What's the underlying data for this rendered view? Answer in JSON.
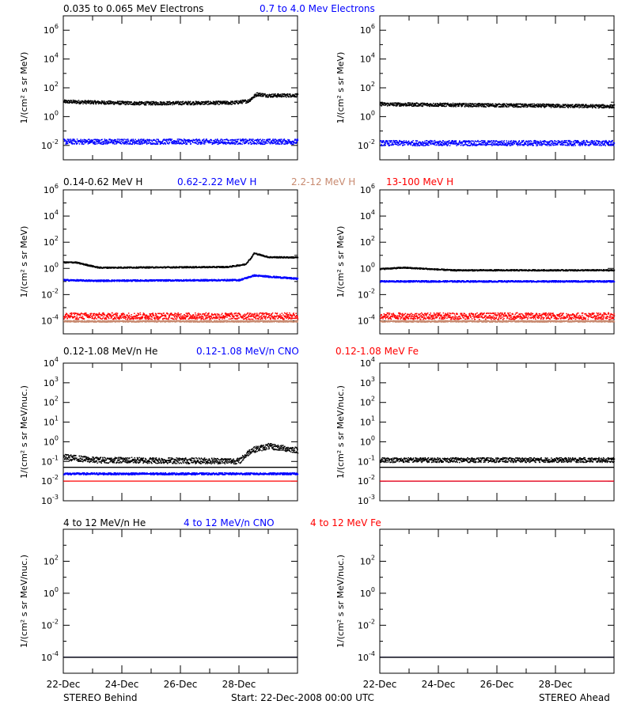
{
  "colors": {
    "black": "#000000",
    "blue": "#0000ff",
    "tan": "#c88a70",
    "red": "#ff0000"
  },
  "footer": {
    "left": "STEREO Behind",
    "center": "Start: 22-Dec-2008 00:00 UTC",
    "right": "STEREO Ahead"
  },
  "chart_data": {
    "type": "scatter",
    "log_scale_y": true,
    "x_range_days": [
      "22-Dec-2008",
      "30-Dec-2008"
    ],
    "x_ticks": [
      "22-Dec",
      "24-Dec",
      "26-Dec",
      "28-Dec"
    ],
    "rows": [
      {
        "id": "electrons",
        "ylabel": "1/(cm² s sr MeV)",
        "ylim_exp": [
          -3,
          7
        ],
        "ytick_exps": [
          -2,
          0,
          2,
          4,
          6
        ],
        "legend": [
          {
            "text": "0.035 to 0.065 MeV Electrons",
            "color": "black"
          },
          {
            "text": "0.7 to 4.0 Mev Electrons",
            "color": "blue"
          }
        ],
        "panels": {
          "behind": [
            {
              "color": "black",
              "points": [
                [
                  0,
                  1.08
                ],
                [
                  2.6,
                  0.96
                ],
                [
                  5.8,
                  1.0
                ],
                [
                  6.3,
                  1.12
                ],
                [
                  6.6,
                  1.6
                ],
                [
                  7.0,
                  1.5
                ],
                [
                  8.0,
                  1.52
                ]
              ],
              "scatter": 0.12
            },
            {
              "color": "blue",
              "points": [
                [
                  0,
                  -1.7
                ],
                [
                  8.0,
                  -1.7
                ]
              ],
              "scatter": 0.18
            }
          ],
          "ahead": [
            {
              "color": "black",
              "points": [
                [
                  0,
                  0.9
                ],
                [
                  8.0,
                  0.75
                ]
              ],
              "scatter": 0.12
            },
            {
              "color": "blue",
              "points": [
                [
                  0,
                  -1.8
                ],
                [
                  8.0,
                  -1.8
                ]
              ],
              "scatter": 0.18
            }
          ]
        }
      },
      {
        "id": "protons",
        "ylabel": "1/(cm² s sr MeV)",
        "ylim_exp": [
          -5,
          6
        ],
        "ytick_exps": [
          -4,
          -2,
          0,
          2,
          4,
          6
        ],
        "legend": [
          {
            "text": "0.14-0.62 MeV H",
            "color": "black"
          },
          {
            "text": "0.62-2.22 MeV H",
            "color": "blue"
          },
          {
            "text": "2.2-12 MeV H",
            "color": "tan"
          },
          {
            "text": "13-100 MeV H",
            "color": "red"
          }
        ],
        "panels": {
          "behind": [
            {
              "color": "black",
              "points": [
                [
                  0,
                  0.5
                ],
                [
                  0.4,
                  0.5
                ],
                [
                  1.2,
                  0.1
                ],
                [
                  5.6,
                  0.15
                ],
                [
                  6.2,
                  0.35
                ],
                [
                  6.4,
                  0.85
                ],
                [
                  6.5,
                  1.2
                ],
                [
                  7.0,
                  0.9
                ],
                [
                  8.0,
                  0.88
                ]
              ],
              "scatter": 0.05
            },
            {
              "color": "blue",
              "points": [
                [
                  0,
                  -0.85
                ],
                [
                  1.0,
                  -0.9
                ],
                [
                  6.0,
                  -0.85
                ],
                [
                  6.5,
                  -0.5
                ],
                [
                  8.0,
                  -0.75
                ]
              ],
              "scatter": 0.06
            },
            {
              "color": "tan",
              "points": [
                [
                  0,
                  -4.0
                ],
                [
                  8.0,
                  -4.0
                ]
              ],
              "scatter": 0.06
            },
            {
              "color": "red",
              "points": [
                [
                  0,
                  -3.6
                ],
                [
                  8.0,
                  -3.6
                ]
              ],
              "scatter": 0.25
            }
          ],
          "ahead": [
            {
              "color": "black",
              "points": [
                [
                  0,
                  0.0
                ],
                [
                  0.8,
                  0.1
                ],
                [
                  2.5,
                  -0.1
                ],
                [
                  8.0,
                  -0.1
                ]
              ],
              "scatter": 0.05
            },
            {
              "color": "blue",
              "points": [
                [
                  0,
                  -0.95
                ],
                [
                  8.0,
                  -0.95
                ]
              ],
              "scatter": 0.06
            },
            {
              "color": "tan",
              "points": [
                [
                  0,
                  -4.0
                ],
                [
                  8.0,
                  -4.0
                ]
              ],
              "scatter": 0.06
            },
            {
              "color": "red",
              "points": [
                [
                  0,
                  -3.6
                ],
                [
                  8.0,
                  -3.6
                ]
              ],
              "scatter": 0.25
            }
          ]
        }
      },
      {
        "id": "low_heavy_ions",
        "ylabel": "1/(cm² s sr MeV/nuc.)",
        "ylim_exp": [
          -3,
          4
        ],
        "ytick_exps": [
          -3,
          -2,
          -1,
          0,
          1,
          2,
          3,
          4
        ],
        "legend": [
          {
            "text": "0.12-1.08 MeV/n He",
            "color": "black"
          },
          {
            "text": "0.12-1.08 MeV/n CNO",
            "color": "blue"
          },
          {
            "text": "0.12-1.08 MeV Fe",
            "color": "red"
          }
        ],
        "panels": {
          "behind": [
            {
              "color": "black",
              "points": [
                [
                  0,
                  -0.75
                ],
                [
                  1.0,
                  -0.9
                ],
                [
                  6.0,
                  -0.95
                ],
                [
                  6.4,
                  -0.4
                ],
                [
                  7.0,
                  -0.2
                ],
                [
                  8.0,
                  -0.4
                ]
              ],
              "scatter": 0.15
            },
            {
              "color": "black",
              "points": [
                [
                  0,
                  -1.3
                ],
                [
                  8.0,
                  -1.3
                ]
              ],
              "scatter": 0.0
            },
            {
              "color": "blue",
              "points": [
                [
                  0,
                  -1.6
                ],
                [
                  8.0,
                  -1.6
                ]
              ],
              "scatter": 0.05
            },
            {
              "color": "red",
              "points": [
                [
                  0,
                  -2.0
                ],
                [
                  8.0,
                  -2.0
                ]
              ],
              "scatter": 0.0
            }
          ],
          "ahead": [
            {
              "color": "black",
              "points": [
                [
                  0,
                  -0.9
                ],
                [
                  8.0,
                  -0.9
                ]
              ],
              "scatter": 0.12
            },
            {
              "color": "black",
              "points": [
                [
                  0,
                  -1.3
                ],
                [
                  8.0,
                  -1.3
                ]
              ],
              "scatter": 0.0
            },
            {
              "color": "blue",
              "points": [
                [
                  0,
                  -2.0
                ],
                [
                  8.0,
                  -2.0
                ]
              ],
              "scatter": 0.0
            },
            {
              "color": "red",
              "points": [
                [
                  0,
                  -2.0
                ],
                [
                  8.0,
                  -2.0
                ]
              ],
              "scatter": 0.0
            }
          ]
        }
      },
      {
        "id": "high_heavy_ions",
        "ylabel": "1/(cm² s sr MeV/nuc.)",
        "ylim_exp": [
          -5,
          4
        ],
        "ytick_exps": [
          -4,
          -2,
          0,
          2
        ],
        "legend": [
          {
            "text": "4 to 12 MeV/n He",
            "color": "black"
          },
          {
            "text": "4 to 12 MeV/n CNO",
            "color": "blue"
          },
          {
            "text": "4 to 12 MeV Fe",
            "color": "red"
          }
        ],
        "panels": {
          "behind": [
            {
              "color": "blue",
              "points": [
                [
                  0,
                  -4.0
                ],
                [
                  8.0,
                  -4.0
                ]
              ],
              "scatter": 0.0
            },
            {
              "color": "black",
              "points": [
                [
                  0,
                  -4.0
                ],
                [
                  8.0,
                  -4.0
                ]
              ],
              "scatter": 0.0
            }
          ],
          "ahead": [
            {
              "color": "blue",
              "points": [
                [
                  0,
                  -4.0
                ],
                [
                  8.0,
                  -4.0
                ]
              ],
              "scatter": 0.0
            },
            {
              "color": "black",
              "points": [
                [
                  0,
                  -4.0
                ],
                [
                  8.0,
                  -4.0
                ]
              ],
              "scatter": 0.0
            }
          ]
        }
      }
    ]
  }
}
